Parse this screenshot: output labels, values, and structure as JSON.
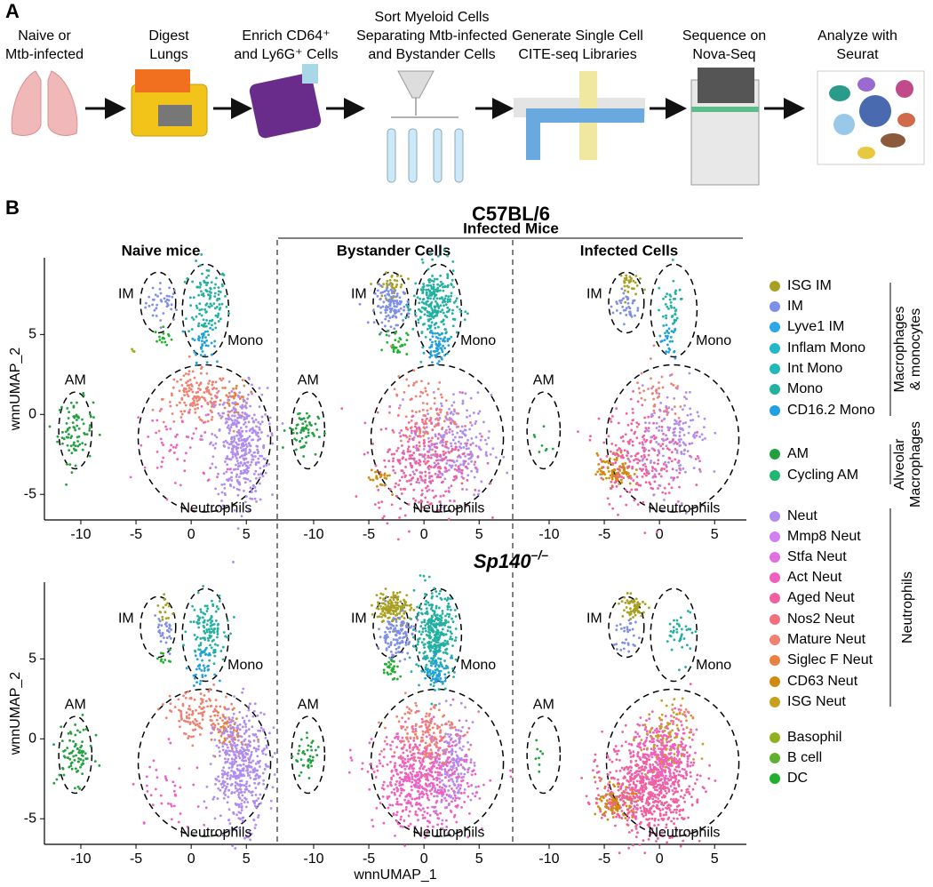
{
  "panel_a": {
    "label": "A",
    "steps": [
      {
        "lines": [
          "Naive or",
          "Mtb-infected"
        ]
      },
      {
        "lines": [
          "Digest",
          "Lungs"
        ]
      },
      {
        "lines": [
          "Enrich CD64⁺",
          "and Ly6G⁺ Cells"
        ]
      },
      {
        "lines": [
          "Sort Myeloid Cells",
          "Separating Mtb-infected",
          "and Bystander Cells"
        ]
      },
      {
        "lines": [
          "Generate Single Cell",
          "CITE-seq Libraries"
        ]
      },
      {
        "lines": [
          "Sequence on",
          "Nova-Seq"
        ]
      },
      {
        "lines": [
          "Analyze with",
          "Seurat"
        ]
      }
    ]
  },
  "panel_b": {
    "label": "B",
    "strains": [
      {
        "name": "C57BL/6"
      },
      {
        "name": "Sp140",
        "superscript": "–/–"
      }
    ],
    "infected_header": "Infected Mice",
    "columns": [
      "Naive mice",
      "Bystander Cells",
      "Infected Cells"
    ],
    "x_label": "wnnUMAP_1",
    "y_label": "wnnUMAP_2",
    "xlim": [
      -13.3,
      7.8
    ],
    "ylim": [
      -6.6,
      9.8
    ],
    "xticks": [
      -10,
      -5,
      0,
      5
    ],
    "yticks": [
      -5,
      0,
      5
    ],
    "region_labels": [
      "IM",
      "Mono",
      "AM",
      "Neutrophils"
    ],
    "legend": [
      {
        "name": "ISG IM",
        "color": "#a8a020"
      },
      {
        "name": "IM",
        "color": "#7f8fe8"
      },
      {
        "name": "Lyve1 IM",
        "color": "#2aa8e8"
      },
      {
        "name": "Inflam Mono",
        "color": "#22b8c8"
      },
      {
        "name": "Int Mono",
        "color": "#20b8b8"
      },
      {
        "name": "Mono",
        "color": "#22b0a0"
      },
      {
        "name": "CD16.2 Mono",
        "color": "#20a0e0"
      },
      {
        "name": "AM",
        "color": "#22a040"
      },
      {
        "name": "Cycling AM",
        "color": "#20b870"
      },
      {
        "name": "Neut",
        "color": "#b08cf0"
      },
      {
        "name": "Mmp8 Neut",
        "color": "#d080f0"
      },
      {
        "name": "Stfa Neut",
        "color": "#e070e0"
      },
      {
        "name": "Act Neut",
        "color": "#f060c0"
      },
      {
        "name": "Aged Neut",
        "color": "#f060a0"
      },
      {
        "name": "Nos2 Neut",
        "color": "#f07080"
      },
      {
        "name": "Mature Neut",
        "color": "#f08070"
      },
      {
        "name": "Siglec F Neut",
        "color": "#e88040"
      },
      {
        "name": "CD63 Neut",
        "color": "#d08a10"
      },
      {
        "name": "ISG Neut",
        "color": "#c8a020"
      },
      {
        "name": "Basophil",
        "color": "#90b020"
      },
      {
        "name": "B cell",
        "color": "#60b030"
      },
      {
        "name": "DC",
        "color": "#20b030"
      }
    ],
    "legend_groups": [
      {
        "lines": [
          "Macrophages",
          "& monocytes"
        ]
      },
      {
        "lines": [
          "Alveolar",
          "Macrophages"
        ]
      },
      {
        "lines": [
          "Neutrophils"
        ]
      }
    ],
    "plots": [
      {
        "clusters": [
          [
            1,
            -2.5,
            7,
            0.8,
            0.6,
            40
          ],
          [
            5,
            1.5,
            7,
            0.9,
            1.2,
            120
          ],
          [
            6,
            1,
            4.5,
            0.5,
            0.6,
            40
          ],
          [
            21,
            -2.5,
            4.8,
            0.4,
            0.3,
            15
          ],
          [
            7,
            -10.5,
            -1,
            0.8,
            1,
            80
          ],
          [
            15,
            0.5,
            1,
            1.5,
            0.8,
            150
          ],
          [
            16,
            4,
            1,
            0.6,
            0.6,
            40
          ],
          [
            9,
            4.5,
            -2,
            1.2,
            1.8,
            400
          ],
          [
            12,
            -1,
            -2,
            2,
            1.5,
            60
          ],
          [
            19,
            -5.3,
            4,
            0.1,
            0.1,
            3
          ]
        ]
      },
      {
        "clusters": [
          [
            0,
            -3,
            8,
            0.6,
            0.4,
            40
          ],
          [
            1,
            -2.8,
            6.8,
            0.8,
            0.6,
            120
          ],
          [
            5,
            1,
            6.8,
            1,
            1.2,
            250
          ],
          [
            6,
            1.2,
            4.3,
            0.5,
            0.5,
            60
          ],
          [
            21,
            -2.5,
            4.5,
            0.5,
            0.4,
            30
          ],
          [
            7,
            -11,
            -1,
            0.7,
            0.7,
            60
          ],
          [
            9,
            2.5,
            -2,
            1.8,
            1.6,
            250
          ],
          [
            13,
            0,
            -3,
            2.2,
            1.6,
            300
          ],
          [
            15,
            0,
            0,
            1.5,
            1.2,
            100
          ],
          [
            17,
            -4,
            -4,
            0.5,
            0.4,
            25
          ]
        ]
      },
      {
        "clusters": [
          [
            0,
            -3,
            8.2,
            0.5,
            0.4,
            30
          ],
          [
            1,
            -3,
            6.8,
            0.6,
            0.5,
            40
          ],
          [
            5,
            1,
            6.8,
            0.6,
            0.8,
            40
          ],
          [
            6,
            0.8,
            4.5,
            0.4,
            0.6,
            30
          ],
          [
            7,
            -10.6,
            -1.5,
            0.4,
            0.8,
            8
          ],
          [
            17,
            -4,
            -3.5,
            0.8,
            0.5,
            100
          ],
          [
            13,
            -1.5,
            -2.5,
            2,
            1.6,
            250
          ],
          [
            9,
            1.5,
            -1.5,
            1.5,
            1.5,
            150
          ],
          [
            15,
            0,
            1,
            1.2,
            1,
            40
          ]
        ]
      },
      {
        "clusters": [
          [
            0,
            -2.3,
            8,
            0.4,
            0.4,
            15
          ],
          [
            1,
            -2.5,
            6.5,
            0.6,
            0.6,
            30
          ],
          [
            5,
            1.5,
            7,
            0.8,
            1,
            120
          ],
          [
            6,
            1,
            4.5,
            0.5,
            0.5,
            40
          ],
          [
            21,
            -2.5,
            5,
            0.3,
            0.3,
            10
          ],
          [
            7,
            -10.5,
            -1,
            0.8,
            0.9,
            80
          ],
          [
            15,
            0.5,
            1.5,
            1.5,
            0.8,
            120
          ],
          [
            16,
            3.5,
            0.5,
            0.6,
            0.6,
            60
          ],
          [
            9,
            4.5,
            -1.8,
            1.2,
            1.8,
            450
          ],
          [
            12,
            -2,
            -3,
            1.5,
            1.5,
            40
          ]
        ]
      },
      {
        "clusters": [
          [
            0,
            -2.8,
            8.2,
            0.8,
            0.5,
            150
          ],
          [
            1,
            -2.5,
            6.5,
            0.8,
            0.7,
            120
          ],
          [
            5,
            1,
            6.5,
            0.9,
            1.3,
            350
          ],
          [
            6,
            1.2,
            4.2,
            0.5,
            0.5,
            60
          ],
          [
            21,
            -3,
            4.3,
            0.4,
            0.4,
            30
          ],
          [
            7,
            -10.5,
            -1.2,
            0.6,
            0.6,
            40
          ],
          [
            12,
            0,
            -2.5,
            2.2,
            1.5,
            600
          ],
          [
            9,
            2.5,
            -1.5,
            1,
            1.5,
            150
          ],
          [
            15,
            0,
            0.5,
            1.5,
            1,
            150
          ]
        ]
      },
      {
        "clusters": [
          [
            0,
            -2.5,
            8.2,
            0.6,
            0.4,
            60
          ],
          [
            1,
            -3,
            6.5,
            0.6,
            0.6,
            30
          ],
          [
            5,
            2,
            6.5,
            0.6,
            0.8,
            40
          ],
          [
            7,
            -10.5,
            -1,
            0.5,
            0.8,
            8
          ],
          [
            17,
            -4,
            -4,
            0.8,
            0.5,
            120
          ],
          [
            13,
            -1,
            -3,
            2,
            1.5,
            700
          ],
          [
            12,
            0.5,
            -1,
            1.5,
            1.2,
            250
          ],
          [
            18,
            0.5,
            0,
            1.2,
            1.2,
            80
          ],
          [
            15,
            2,
            1.5,
            0.4,
            0.4,
            10
          ]
        ]
      }
    ]
  }
}
